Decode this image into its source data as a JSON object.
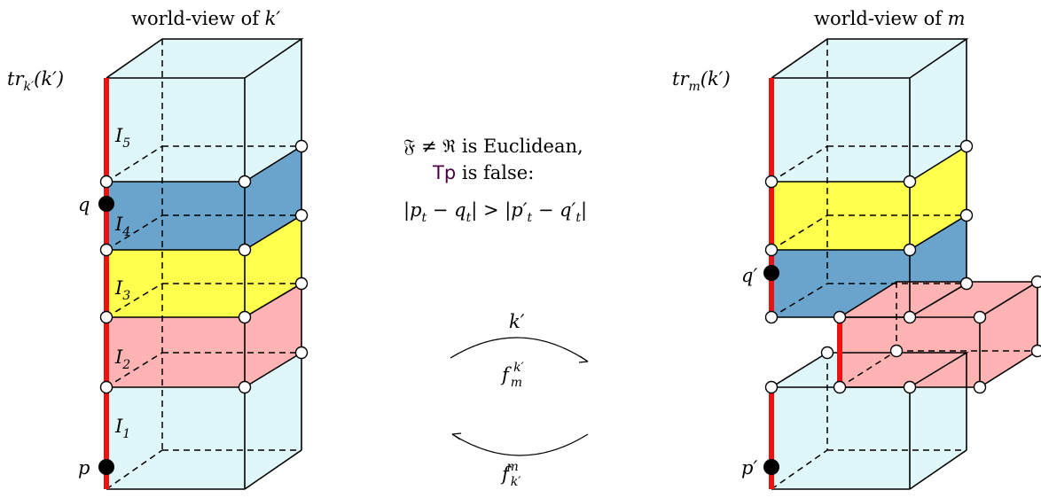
{
  "left_panel": {
    "caption_prefix": "world-view of ",
    "caption_var": "k′",
    "trace_label": "tr",
    "trace_sub": "k′",
    "trace_arg": "(k′)",
    "interval_labels": [
      "I",
      "I",
      "I",
      "I",
      "I"
    ],
    "interval_subs": [
      "1",
      "2",
      "3",
      "4",
      "5"
    ],
    "point_p": "p",
    "point_q": "q"
  },
  "right_panel": {
    "caption_prefix": "world-view of ",
    "caption_var": "m",
    "trace_label": "tr",
    "trace_sub": "m",
    "trace_arg": "(k′)",
    "point_p": "p′",
    "point_q": "q′"
  },
  "center_text": {
    "line1_frak_f": "𝔉",
    "line1_neq": " ≠ ",
    "line1_frak_r": "ℜ",
    "line1_rest": " is Euclidean,",
    "line2_tp": "Tp",
    "line2_rest": " is false:",
    "line3": "|p",
    "line3_sub1": "t",
    "line3_mid1": " − q",
    "line3_sub2": "t",
    "line3_mid2": "| > |p′",
    "line3_sub3": "t",
    "line3_mid3": " − q′",
    "line3_sub4": "t",
    "line3_end": "|"
  },
  "arrows": {
    "top_label": "k′",
    "mid_label": "f",
    "mid_sub": "m",
    "mid_sup": "k′",
    "bottom_label": "f",
    "bottom_sub": "k′",
    "bottom_sup": "m"
  },
  "colors": {
    "sky": "#e0f7fa",
    "blue": "#6aa3cb",
    "yellow": "#ffff4d",
    "pink": "#ffb3b3",
    "red": "#ee1111",
    "tp": "#4b0040"
  }
}
